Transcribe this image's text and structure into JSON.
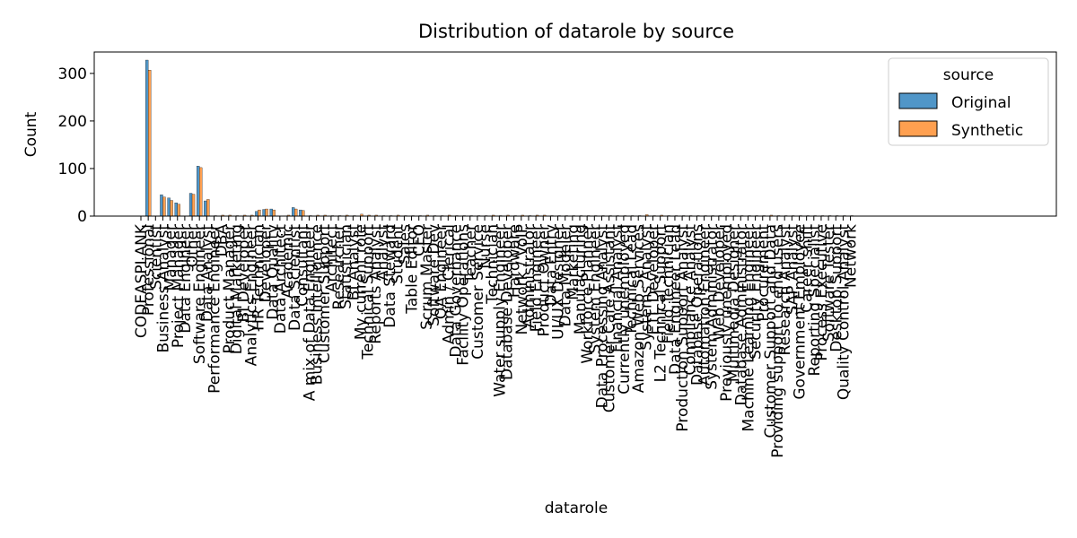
{
  "chart_data": {
    "type": "bar",
    "title": "Distribution of datarole by source",
    "xlabel": "datarole",
    "ylabel": "Count",
    "ylim": [
      0,
      345
    ],
    "yticks": [
      0,
      100,
      200,
      300
    ],
    "grid": false,
    "legend": {
      "title": "source",
      "placement": "top-right"
    },
    "categories": [
      "CODEASPLANK",
      "Professional",
      "Scientist",
      "Business Analyst",
      "Manager",
      "Project Manager",
      "Data Engineer",
      "Other",
      "Software Engineer",
      "Data Analyst",
      "Performance Engineer",
      "DBA",
      "Product Manager",
      "Digital Marketing",
      "BI Developer",
      "Analytics Engineer",
      "HR Technician",
      "Developer",
      "Data Quality",
      "Data Architect",
      "Academic",
      "Data Scientist",
      "Consultant",
      "A mix of Data Engineer",
      "Business Intelligence",
      "Customer Support",
      "Architect",
      "Researcher",
      "Statistician",
      "BI Analyst",
      "My current role",
      "Technical Support",
      "Reports Analyst",
      "Analyst",
      "Data Steward",
      "Student",
      "Sales",
      "Table Editor",
      "CEO",
      "Scrum Master",
      "Software Dev",
      "QA Engineer",
      "Admin / Clerical",
      "Data Governance",
      "Facility Operations",
      "Teacher",
      "Customer Service",
      "Nurse",
      "Technician",
      "Water supply Engineer",
      "Database Developer",
      "Hardware",
      "Network / VoIP",
      "Administrator",
      "Field Engineer",
      "Product Owner",
      "Data Entry",
      "UI/UX Designer",
      "Data Modeler",
      "Marketing",
      "Manufacturing",
      "Workforce Planner",
      "System Engineer",
      "Data Processing Analyst",
      "Customer Care Assistant",
      "Financial Analyst",
      "Currently unemployed",
      "Technical Lead",
      "Amazon Web Services",
      "Systems Analyst",
      "ETL Developer",
      "L2 Technical Support",
      "Field Technician",
      "Data Engineer Lead",
      "Production Support Analyst",
      "Compliance Analyst",
      "Database Operations",
      "Automation Engineer",
      "System Administrator",
      "Web Developer",
      "Previously unemployed",
      "Multimedia Designer",
      "Database Administrator",
      "Machine Learning Engineer",
      "Security Engineer",
      "Procurement",
      "Customer Support and Data",
      "Providing support to end users",
      "Research Analyst",
      "SAP Analyst",
      "Government Employee",
      "Career shift",
      "Reporting Specialist",
      "Process Executive",
      "Software Tester",
      "Desktop Support",
      "Quality Control Analyst",
      "Network"
    ],
    "series": [
      {
        "name": "Original",
        "values": [
          0,
          328,
          0,
          45,
          38,
          28,
          0,
          48,
          105,
          32,
          0,
          0,
          0,
          0,
          0,
          0,
          10,
          14,
          15,
          0,
          0,
          18,
          13,
          0,
          0,
          0,
          0,
          0,
          0,
          0,
          0,
          0,
          0,
          0,
          0,
          0,
          0,
          0,
          0,
          0,
          0,
          0,
          0,
          0,
          0,
          0,
          0,
          0,
          0,
          0,
          0,
          0,
          0,
          0,
          0,
          0,
          0,
          0,
          0,
          0,
          0,
          0,
          0,
          0,
          0,
          0,
          0,
          0,
          0,
          0,
          0,
          0,
          0,
          0,
          0,
          0,
          0,
          0,
          0,
          0,
          0,
          0,
          0,
          0,
          0,
          0,
          0,
          0,
          0,
          0,
          0,
          0,
          0,
          0,
          0,
          0,
          0,
          0
        ]
      },
      {
        "name": "Synthetic",
        "values": [
          0,
          307,
          0,
          40,
          33,
          25,
          0,
          46,
          102,
          35,
          1,
          2,
          2,
          1,
          2,
          2,
          13,
          15,
          13,
          0,
          2,
          15,
          12,
          1,
          2,
          2,
          1,
          1,
          2,
          1,
          4,
          2,
          2,
          1,
          1,
          2,
          1,
          1,
          1,
          2,
          1,
          1,
          2,
          1,
          1,
          1,
          1,
          1,
          2,
          1,
          2,
          1,
          2,
          1,
          2,
          2,
          1,
          1,
          1,
          1,
          1,
          1,
          1,
          1,
          1,
          1,
          1,
          1,
          1,
          3,
          1,
          2,
          1,
          1,
          1,
          1,
          1,
          1,
          1,
          1,
          1,
          1,
          1,
          1,
          1,
          1,
          2,
          1,
          1,
          1,
          1,
          1,
          1,
          1,
          1,
          1,
          1,
          1
        ]
      }
    ],
    "colors": {
      "Original": "#5096c8",
      "Synthetic": "#ffa050",
      "edge": "#000000"
    }
  }
}
